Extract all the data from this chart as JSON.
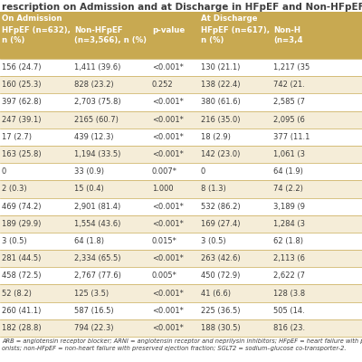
{
  "title": "rescription on Admission and at Discharge in HFpEF and Non-HFpEF P",
  "header_bg": "#C8A951",
  "header_text": "#FFFFFF",
  "row_bg_white": "#FFFFFF",
  "row_bg_tan": "#F5EDD8",
  "text_color": "#3D3D3D",
  "line_color": "#C8A951",
  "footnote_text": "ARB = angiotensin receptor blocker; ARNI = angiotensin receptor and neprilysin inhibitors; HFpEF = heart failure with presen\nonists; non-HFpEF = non-heart failure with preserved ejection fraction; SGLT2 = sodium–glucose co-transporter-2.",
  "group1_label": "On Admission",
  "group2_label": "At Discharge",
  "col1_hdr": "HFpEF (n=632),\nn (%)",
  "col2_hdr": "Non-HFpEF\n(n=3,566), n (%)",
  "col3_hdr": "p-value",
  "col4_hdr": "HFpEF (n=617),\nn (%)",
  "col5_hdr": "Non-H\n(n=3,4",
  "rows": [
    [
      "156 (24.7)",
      "1,411 (39.6)",
      "<0.001*",
      "130 (21.1)",
      "1,217 (35"
    ],
    [
      "160 (25.3)",
      "828 (23.2)",
      "0.252",
      "138 (22.4)",
      "742 (21."
    ],
    [
      "397 (62.8)",
      "2,703 (75.8)",
      "<0.001*",
      "380 (61.6)",
      "2,585 (7"
    ],
    [
      "247 (39.1)",
      "2165 (60.7)",
      "<0.001*",
      "216 (35.0)",
      "2,095 (6"
    ],
    [
      "17 (2.7)",
      "439 (12.3)",
      "<0.001*",
      "18 (2.9)",
      "377 (11.1"
    ],
    [
      "163 (25.8)",
      "1,194 (33.5)",
      "<0.001*",
      "142 (23.0)",
      "1,061 (3"
    ],
    [
      "0",
      "33 (0.9)",
      "0.007*",
      "0",
      "64 (1.9)"
    ],
    [
      "2 (0.3)",
      "15 (0.4)",
      "1.000",
      "8 (1.3)",
      "74 (2.2)"
    ],
    [
      "469 (74.2)",
      "2,901 (81.4)",
      "<0.001*",
      "532 (86.2)",
      "3,189 (9"
    ],
    [
      "189 (29.9)",
      "1,554 (43.6)",
      "<0.001*",
      "169 (27.4)",
      "1,284 (3"
    ],
    [
      "3 (0.5)",
      "64 (1.8)",
      "0.015*",
      "3 (0.5)",
      "62 (1.8)"
    ],
    [
      "281 (44.5)",
      "2,334 (65.5)",
      "<0.001*",
      "263 (42.6)",
      "2,113 (6"
    ],
    [
      "458 (72.5)",
      "2,767 (77.6)",
      "0.005*",
      "450 (72.9)",
      "2,622 (7"
    ],
    [
      "52 (8.2)",
      "125 (3.5)",
      "<0.001*",
      "41 (6.6)",
      "128 (3.8"
    ],
    [
      "260 (41.1)",
      "587 (16.5)",
      "<0.001*",
      "225 (36.5)",
      "505 (14."
    ],
    [
      "182 (28.8)",
      "794 (22.3)",
      "<0.001*",
      "188 (30.5)",
      "816 (23."
    ]
  ]
}
